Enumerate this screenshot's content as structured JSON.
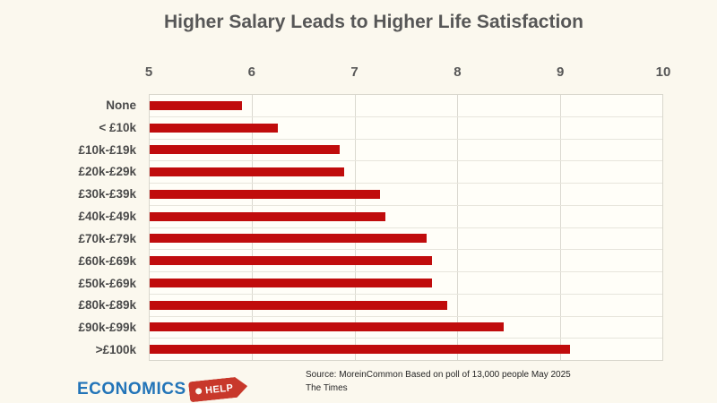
{
  "title": "Higher Salary Leads to Higher Life Satisfaction",
  "chart_data": {
    "type": "bar",
    "orientation": "horizontal",
    "title": "Higher Salary Leads to Higher Life Satisfaction",
    "categories": [
      "None",
      "< £10k",
      "£10k-£19k",
      "£20k-£29k",
      "£30k-£39k",
      "£40k-£49k",
      "£70k-£79k",
      "£60k-£69k",
      "£50k-£69k",
      "£80k-£89k",
      "£90k-£99k",
      ">£100k"
    ],
    "values": [
      5.9,
      6.25,
      6.85,
      6.9,
      7.25,
      7.3,
      7.7,
      7.75,
      7.75,
      7.9,
      8.45,
      9.1
    ],
    "xlabel": "",
    "ylabel": "",
    "xlim": [
      5,
      10
    ],
    "x_ticks": [
      5,
      6,
      7,
      8,
      9,
      10
    ],
    "grid": true,
    "legend": "none",
    "bar_color": "#c00c0c"
  },
  "source": {
    "line1": "Source: MoreinCommon Based on poll of 13,000 people May 2025",
    "line2": "The Times"
  },
  "logo": {
    "text": "ECONOMICS",
    "tag_text": "HELP"
  },
  "colors": {
    "background": "#fbf8ee",
    "bar": "#c00c0c",
    "title_text": "#575757",
    "gridline": "#dbd9d0",
    "logo_blue": "#2274b8",
    "logo_tag_red": "#c8382b"
  }
}
